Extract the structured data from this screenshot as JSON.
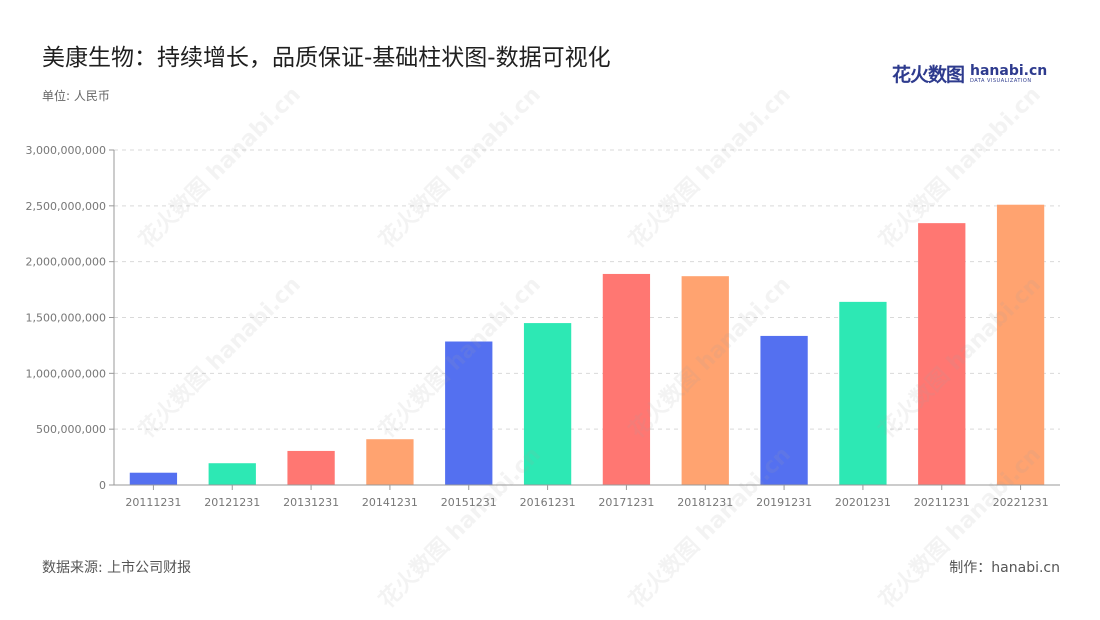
{
  "header": {
    "title": "美康生物：持续增长，品质保证-基础柱状图-数据可视化",
    "unit": "单位: 人民币"
  },
  "logo": {
    "cn": "花火数图",
    "en": "hanabi.cn",
    "en_sub": "DATA VISUALIZATION"
  },
  "watermark": "花火数图 hanabi.cn",
  "footer": {
    "source": "数据来源: 上市公司财报",
    "maker": "制作：hanabi.cn"
  },
  "chart_data": {
    "type": "bar",
    "categories": [
      "20111231",
      "20121231",
      "20131231",
      "20141231",
      "20151231",
      "20161231",
      "20171231",
      "20181231",
      "20191231",
      "20201231",
      "20211231",
      "20221231"
    ],
    "values": [
      110000000,
      195000000,
      305000000,
      410000000,
      1285000000,
      1450000000,
      1890000000,
      1870000000,
      1335000000,
      1640000000,
      2345000000,
      2510000000
    ],
    "bar_colors": [
      "#5470f0",
      "#2de8b4",
      "#ff7772",
      "#ffa370",
      "#5470f0",
      "#2de8b4",
      "#ff7772",
      "#ffa370",
      "#5470f0",
      "#2de8b4",
      "#ff7772",
      "#ffa370"
    ],
    "ylim": [
      0,
      3000000000
    ],
    "yticks": [
      0,
      500000000,
      1000000000,
      1500000000,
      2000000000,
      2500000000,
      3000000000
    ],
    "ytick_labels": [
      "0",
      "500,000,000",
      "1,000,000,000",
      "1,500,000,000",
      "2,000,000,000",
      "2,500,000,000",
      "3,000,000,000"
    ],
    "grid": true,
    "legend": "none"
  }
}
